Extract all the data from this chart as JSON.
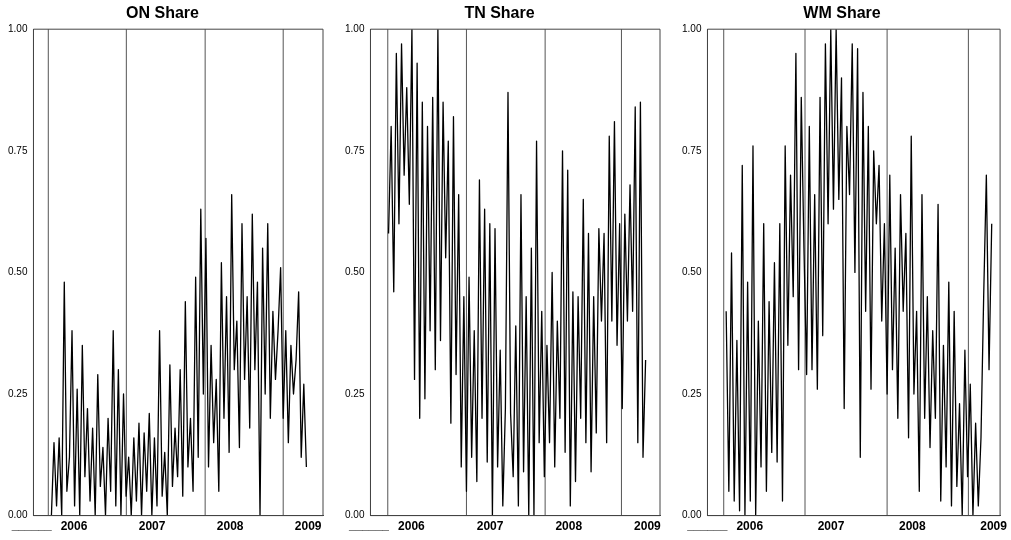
{
  "chart_data": [
    {
      "type": "line",
      "title": "ON Share",
      "annotations": [
        "______"
      ],
      "xlim": [
        2005.48,
        2009.19
      ],
      "xticks": [
        2006,
        2007,
        2008,
        2009
      ],
      "ylim": [
        0,
        1
      ],
      "yticks": [
        {
          "value": 0,
          "label": "0.00"
        },
        {
          "value": 0.25,
          "label": "0.25"
        },
        {
          "value": 0.5,
          "label": "0.50"
        },
        {
          "value": 0.75,
          "label": "0.75"
        },
        {
          "value": 1,
          "label": "1.00"
        }
      ],
      "grid": false,
      "marker": "none",
      "line_style": "solid",
      "ref_lines": [
        {
          "axis": "x",
          "value": 2005.67,
          "color": "#555555"
        },
        {
          "axis": "x",
          "value": 2006.67,
          "color": "#555555"
        },
        {
          "axis": "x",
          "value": 2007.68,
          "color": "#555555"
        },
        {
          "axis": "x",
          "value": 2008.68,
          "color": "#555555"
        }
      ],
      "x": [
        2005.71,
        2005.743,
        2005.776,
        2005.809,
        2005.842,
        2005.875,
        2005.908,
        2005.941,
        2005.974,
        2006.007,
        2006.04,
        2006.073,
        2006.106,
        2006.139,
        2006.172,
        2006.205,
        2006.238,
        2006.271,
        2006.304,
        2006.337,
        2006.37,
        2006.403,
        2006.436,
        2006.469,
        2006.502,
        2006.535,
        2006.568,
        2006.601,
        2006.634,
        2006.667,
        2006.7,
        2006.733,
        2006.766,
        2006.799,
        2006.832,
        2006.865,
        2006.898,
        2006.931,
        2006.964,
        2006.997,
        2007.03,
        2007.063,
        2007.096,
        2007.129,
        2007.162,
        2007.195,
        2007.228,
        2007.261,
        2007.294,
        2007.327,
        2007.36,
        2007.393,
        2007.426,
        2007.459,
        2007.492,
        2007.525,
        2007.558,
        2007.591,
        2007.624,
        2007.657,
        2007.69,
        2007.723,
        2007.756,
        2007.789,
        2007.822,
        2007.855,
        2007.888,
        2007.921,
        2007.954,
        2007.987,
        2008.02,
        2008.053,
        2008.086,
        2008.119,
        2008.152,
        2008.185,
        2008.218,
        2008.251,
        2008.284,
        2008.317,
        2008.35,
        2008.383,
        2008.416,
        2008.449,
        2008.482,
        2008.515,
        2008.548,
        2008.581,
        2008.614,
        2008.647,
        2008.68,
        2008.713,
        2008.746,
        2008.779,
        2008.812,
        2008.845,
        2008.878,
        2008.911,
        2008.944,
        2008.977
      ],
      "series": [
        {
          "color": "#000000",
          "values": [
            0.0,
            0.15,
            0.02,
            0.16,
            0.0,
            0.48,
            0.05,
            0.12,
            0.38,
            0.02,
            0.26,
            0.0,
            0.35,
            0.08,
            0.22,
            0.03,
            0.18,
            0.0,
            0.29,
            0.06,
            0.14,
            0.0,
            0.2,
            0.05,
            0.38,
            0.02,
            0.3,
            0.0,
            0.25,
            0.04,
            0.12,
            0.0,
            0.16,
            0.03,
            0.19,
            0.0,
            0.17,
            0.05,
            0.21,
            0.0,
            0.16,
            0.02,
            0.38,
            0.04,
            0.13,
            0.0,
            0.31,
            0.06,
            0.18,
            0.08,
            0.3,
            0.04,
            0.44,
            0.1,
            0.2,
            0.05,
            0.49,
            0.12,
            0.63,
            0.25,
            0.57,
            0.1,
            0.35,
            0.15,
            0.28,
            0.05,
            0.52,
            0.2,
            0.45,
            0.13,
            0.66,
            0.3,
            0.4,
            0.14,
            0.6,
            0.28,
            0.45,
            0.18,
            0.62,
            0.3,
            0.48,
            0.0,
            0.55,
            0.25,
            0.6,
            0.2,
            0.42,
            0.28,
            0.38,
            0.51,
            0.2,
            0.38,
            0.15,
            0.35,
            0.25,
            0.32,
            0.46,
            0.12,
            0.27,
            0.1
          ]
        }
      ]
    },
    {
      "type": "line",
      "title": "TN Share",
      "annotations": [
        "______"
      ],
      "xlim": [
        2005.48,
        2009.16
      ],
      "xticks": [
        2006,
        2007,
        2008,
        2009
      ],
      "ylim": [
        0,
        1
      ],
      "yticks": [
        {
          "value": 0,
          "label": "0.00"
        },
        {
          "value": 0.25,
          "label": "0.25"
        },
        {
          "value": 0.5,
          "label": "0.50"
        },
        {
          "value": 0.75,
          "label": "0.75"
        },
        {
          "value": 1,
          "label": "1.00"
        }
      ],
      "grid": false,
      "marker": "none",
      "line_style": "solid",
      "ref_lines": [
        {
          "axis": "x",
          "value": 2005.7,
          "color": "#555555"
        },
        {
          "axis": "x",
          "value": 2006.7,
          "color": "#555555"
        },
        {
          "axis": "x",
          "value": 2007.7,
          "color": "#555555"
        },
        {
          "axis": "x",
          "value": 2008.67,
          "color": "#555555"
        }
      ],
      "x": [
        2005.71,
        2005.743,
        2005.776,
        2005.809,
        2005.842,
        2005.875,
        2005.908,
        2005.941,
        2005.974,
        2006.007,
        2006.04,
        2006.073,
        2006.106,
        2006.139,
        2006.172,
        2006.205,
        2006.238,
        2006.271,
        2006.304,
        2006.337,
        2006.37,
        2006.403,
        2006.436,
        2006.469,
        2006.502,
        2006.535,
        2006.568,
        2006.601,
        2006.634,
        2006.667,
        2006.7,
        2006.733,
        2006.766,
        2006.799,
        2006.832,
        2006.865,
        2006.898,
        2006.931,
        2006.964,
        2006.997,
        2007.03,
        2007.063,
        2007.096,
        2007.129,
        2007.162,
        2007.195,
        2007.228,
        2007.261,
        2007.294,
        2007.327,
        2007.36,
        2007.393,
        2007.426,
        2007.459,
        2007.492,
        2007.525,
        2007.558,
        2007.591,
        2007.624,
        2007.657,
        2007.69,
        2007.723,
        2007.756,
        2007.789,
        2007.822,
        2007.855,
        2007.888,
        2007.921,
        2007.954,
        2007.987,
        2008.02,
        2008.053,
        2008.086,
        2008.119,
        2008.152,
        2008.185,
        2008.218,
        2008.251,
        2008.284,
        2008.317,
        2008.35,
        2008.383,
        2008.416,
        2008.449,
        2008.482,
        2008.515,
        2008.548,
        2008.581,
        2008.614,
        2008.647,
        2008.68,
        2008.713,
        2008.746,
        2008.779,
        2008.812,
        2008.845,
        2008.878,
        2008.911,
        2008.944,
        2008.977
      ],
      "series": [
        {
          "color": "#000000",
          "values": [
            0.58,
            0.8,
            0.46,
            0.95,
            0.6,
            0.97,
            0.7,
            0.88,
            0.64,
            1.0,
            0.28,
            0.93,
            0.2,
            0.85,
            0.24,
            0.8,
            0.38,
            0.86,
            0.3,
            1.0,
            0.36,
            0.85,
            0.53,
            0.77,
            0.19,
            0.82,
            0.29,
            0.66,
            0.1,
            0.45,
            0.05,
            0.49,
            0.12,
            0.38,
            0.07,
            0.69,
            0.2,
            0.63,
            0.11,
            0.6,
            0.0,
            0.59,
            0.1,
            0.34,
            0.02,
            0.22,
            0.87,
            0.21,
            0.08,
            0.39,
            0.02,
            0.66,
            0.09,
            0.45,
            0.0,
            0.55,
            0.0,
            0.77,
            0.15,
            0.42,
            0.08,
            0.35,
            0.15,
            0.5,
            0.1,
            0.4,
            0.2,
            0.75,
            0.13,
            0.71,
            0.02,
            0.46,
            0.07,
            0.45,
            0.2,
            0.65,
            0.15,
            0.58,
            0.09,
            0.45,
            0.17,
            0.59,
            0.4,
            0.58,
            0.15,
            0.78,
            0.4,
            0.81,
            0.35,
            0.6,
            0.22,
            0.62,
            0.4,
            0.68,
            0.42,
            0.84,
            0.15,
            0.85,
            0.12,
            0.32
          ]
        }
      ]
    },
    {
      "type": "line",
      "title": "WM Share",
      "annotations": [
        "______"
      ],
      "xlim": [
        2005.48,
        2009.08
      ],
      "xticks": [
        2006,
        2007,
        2008,
        2009
      ],
      "ylim": [
        0,
        1
      ],
      "yticks": [
        {
          "value": 0,
          "label": "0.00"
        },
        {
          "value": 0.25,
          "label": "0.25"
        },
        {
          "value": 0.5,
          "label": "0.50"
        },
        {
          "value": 0.75,
          "label": "0.75"
        },
        {
          "value": 1,
          "label": "1.00"
        }
      ],
      "grid": false,
      "marker": "none",
      "line_style": "solid",
      "ref_lines": [
        {
          "axis": "x",
          "value": 2005.68,
          "color": "#555555"
        },
        {
          "axis": "x",
          "value": 2006.68,
          "color": "#555555"
        },
        {
          "axis": "x",
          "value": 2007.69,
          "color": "#555555"
        },
        {
          "axis": "x",
          "value": 2008.69,
          "color": "#555555"
        }
      ],
      "x": [
        2005.71,
        2005.743,
        2005.776,
        2005.809,
        2005.842,
        2005.875,
        2005.908,
        2005.941,
        2005.974,
        2006.007,
        2006.04,
        2006.073,
        2006.106,
        2006.139,
        2006.172,
        2006.205,
        2006.238,
        2006.271,
        2006.304,
        2006.337,
        2006.37,
        2006.403,
        2006.436,
        2006.469,
        2006.502,
        2006.535,
        2006.568,
        2006.601,
        2006.634,
        2006.667,
        2006.7,
        2006.733,
        2006.766,
        2006.799,
        2006.832,
        2006.865,
        2006.898,
        2006.931,
        2006.964,
        2006.997,
        2007.03,
        2007.063,
        2007.096,
        2007.129,
        2007.162,
        2007.195,
        2007.228,
        2007.261,
        2007.294,
        2007.327,
        2007.36,
        2007.393,
        2007.426,
        2007.459,
        2007.492,
        2007.525,
        2007.558,
        2007.591,
        2007.624,
        2007.657,
        2007.69,
        2007.723,
        2007.756,
        2007.789,
        2007.822,
        2007.855,
        2007.888,
        2007.921,
        2007.954,
        2007.987,
        2008.02,
        2008.053,
        2008.086,
        2008.119,
        2008.152,
        2008.185,
        2008.218,
        2008.251,
        2008.284,
        2008.317,
        2008.35,
        2008.383,
        2008.416,
        2008.449,
        2008.482,
        2008.515,
        2008.548,
        2008.581,
        2008.614,
        2008.647,
        2008.68,
        2008.713,
        2008.746,
        2008.779,
        2008.812,
        2008.845,
        2008.878,
        2008.911,
        2008.944,
        2008.977
      ],
      "series": [
        {
          "color": "#000000",
          "values": [
            0.42,
            0.05,
            0.54,
            0.03,
            0.36,
            0.01,
            0.72,
            0.0,
            0.48,
            0.03,
            0.76,
            0.0,
            0.4,
            0.1,
            0.6,
            0.05,
            0.44,
            0.13,
            0.52,
            0.11,
            0.6,
            0.03,
            0.76,
            0.35,
            0.7,
            0.45,
            0.95,
            0.3,
            0.86,
            0.55,
            0.29,
            0.8,
            0.3,
            0.66,
            0.26,
            0.86,
            0.37,
            0.97,
            0.6,
            1.0,
            0.63,
            1.0,
            0.65,
            0.9,
            0.22,
            0.8,
            0.66,
            0.97,
            0.5,
            0.96,
            0.12,
            0.87,
            0.42,
            0.8,
            0.26,
            0.75,
            0.6,
            0.72,
            0.4,
            0.6,
            0.25,
            0.7,
            0.3,
            0.55,
            0.2,
            0.66,
            0.42,
            0.58,
            0.16,
            0.78,
            0.25,
            0.42,
            0.05,
            0.66,
            0.2,
            0.45,
            0.14,
            0.38,
            0.2,
            0.64,
            0.03,
            0.35,
            0.1,
            0.48,
            0.02,
            0.42,
            0.06,
            0.23,
            0.0,
            0.34,
            0.08,
            0.27,
            0.0,
            0.19,
            0.02,
            0.16,
            0.45,
            0.7,
            0.3,
            0.6
          ]
        }
      ]
    }
  ]
}
